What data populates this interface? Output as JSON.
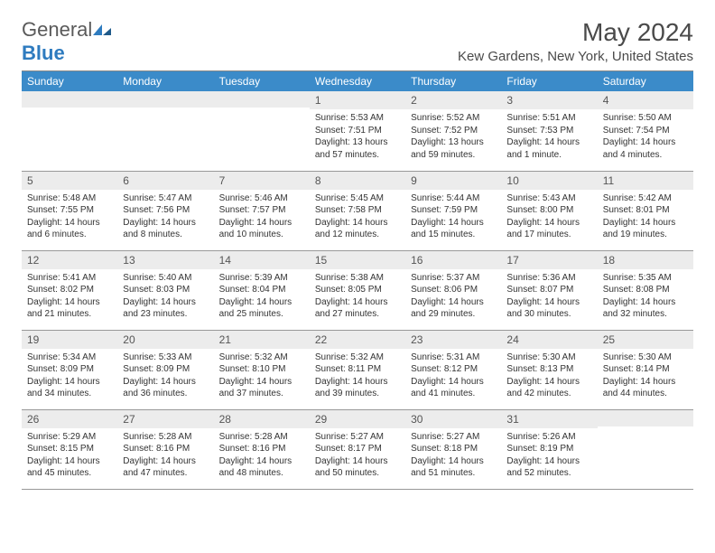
{
  "logo": {
    "word1": "General",
    "word2": "Blue"
  },
  "title": "May 2024",
  "location": "Kew Gardens, New York, United States",
  "colors": {
    "header_bg": "#3b8bc9",
    "header_text": "#ffffff",
    "daynum_bg": "#ececec",
    "border": "#999999",
    "text": "#333333",
    "logo_gray": "#5a5a5a",
    "logo_blue": "#2e7bbf"
  },
  "weekdays": [
    "Sunday",
    "Monday",
    "Tuesday",
    "Wednesday",
    "Thursday",
    "Friday",
    "Saturday"
  ],
  "weeks": [
    [
      {
        "n": "",
        "sr": "",
        "ss": "",
        "dl": ""
      },
      {
        "n": "",
        "sr": "",
        "ss": "",
        "dl": ""
      },
      {
        "n": "",
        "sr": "",
        "ss": "",
        "dl": ""
      },
      {
        "n": "1",
        "sr": "Sunrise: 5:53 AM",
        "ss": "Sunset: 7:51 PM",
        "dl": "Daylight: 13 hours and 57 minutes."
      },
      {
        "n": "2",
        "sr": "Sunrise: 5:52 AM",
        "ss": "Sunset: 7:52 PM",
        "dl": "Daylight: 13 hours and 59 minutes."
      },
      {
        "n": "3",
        "sr": "Sunrise: 5:51 AM",
        "ss": "Sunset: 7:53 PM",
        "dl": "Daylight: 14 hours and 1 minute."
      },
      {
        "n": "4",
        "sr": "Sunrise: 5:50 AM",
        "ss": "Sunset: 7:54 PM",
        "dl": "Daylight: 14 hours and 4 minutes."
      }
    ],
    [
      {
        "n": "5",
        "sr": "Sunrise: 5:48 AM",
        "ss": "Sunset: 7:55 PM",
        "dl": "Daylight: 14 hours and 6 minutes."
      },
      {
        "n": "6",
        "sr": "Sunrise: 5:47 AM",
        "ss": "Sunset: 7:56 PM",
        "dl": "Daylight: 14 hours and 8 minutes."
      },
      {
        "n": "7",
        "sr": "Sunrise: 5:46 AM",
        "ss": "Sunset: 7:57 PM",
        "dl": "Daylight: 14 hours and 10 minutes."
      },
      {
        "n": "8",
        "sr": "Sunrise: 5:45 AM",
        "ss": "Sunset: 7:58 PM",
        "dl": "Daylight: 14 hours and 12 minutes."
      },
      {
        "n": "9",
        "sr": "Sunrise: 5:44 AM",
        "ss": "Sunset: 7:59 PM",
        "dl": "Daylight: 14 hours and 15 minutes."
      },
      {
        "n": "10",
        "sr": "Sunrise: 5:43 AM",
        "ss": "Sunset: 8:00 PM",
        "dl": "Daylight: 14 hours and 17 minutes."
      },
      {
        "n": "11",
        "sr": "Sunrise: 5:42 AM",
        "ss": "Sunset: 8:01 PM",
        "dl": "Daylight: 14 hours and 19 minutes."
      }
    ],
    [
      {
        "n": "12",
        "sr": "Sunrise: 5:41 AM",
        "ss": "Sunset: 8:02 PM",
        "dl": "Daylight: 14 hours and 21 minutes."
      },
      {
        "n": "13",
        "sr": "Sunrise: 5:40 AM",
        "ss": "Sunset: 8:03 PM",
        "dl": "Daylight: 14 hours and 23 minutes."
      },
      {
        "n": "14",
        "sr": "Sunrise: 5:39 AM",
        "ss": "Sunset: 8:04 PM",
        "dl": "Daylight: 14 hours and 25 minutes."
      },
      {
        "n": "15",
        "sr": "Sunrise: 5:38 AM",
        "ss": "Sunset: 8:05 PM",
        "dl": "Daylight: 14 hours and 27 minutes."
      },
      {
        "n": "16",
        "sr": "Sunrise: 5:37 AM",
        "ss": "Sunset: 8:06 PM",
        "dl": "Daylight: 14 hours and 29 minutes."
      },
      {
        "n": "17",
        "sr": "Sunrise: 5:36 AM",
        "ss": "Sunset: 8:07 PM",
        "dl": "Daylight: 14 hours and 30 minutes."
      },
      {
        "n": "18",
        "sr": "Sunrise: 5:35 AM",
        "ss": "Sunset: 8:08 PM",
        "dl": "Daylight: 14 hours and 32 minutes."
      }
    ],
    [
      {
        "n": "19",
        "sr": "Sunrise: 5:34 AM",
        "ss": "Sunset: 8:09 PM",
        "dl": "Daylight: 14 hours and 34 minutes."
      },
      {
        "n": "20",
        "sr": "Sunrise: 5:33 AM",
        "ss": "Sunset: 8:09 PM",
        "dl": "Daylight: 14 hours and 36 minutes."
      },
      {
        "n": "21",
        "sr": "Sunrise: 5:32 AM",
        "ss": "Sunset: 8:10 PM",
        "dl": "Daylight: 14 hours and 37 minutes."
      },
      {
        "n": "22",
        "sr": "Sunrise: 5:32 AM",
        "ss": "Sunset: 8:11 PM",
        "dl": "Daylight: 14 hours and 39 minutes."
      },
      {
        "n": "23",
        "sr": "Sunrise: 5:31 AM",
        "ss": "Sunset: 8:12 PM",
        "dl": "Daylight: 14 hours and 41 minutes."
      },
      {
        "n": "24",
        "sr": "Sunrise: 5:30 AM",
        "ss": "Sunset: 8:13 PM",
        "dl": "Daylight: 14 hours and 42 minutes."
      },
      {
        "n": "25",
        "sr": "Sunrise: 5:30 AM",
        "ss": "Sunset: 8:14 PM",
        "dl": "Daylight: 14 hours and 44 minutes."
      }
    ],
    [
      {
        "n": "26",
        "sr": "Sunrise: 5:29 AM",
        "ss": "Sunset: 8:15 PM",
        "dl": "Daylight: 14 hours and 45 minutes."
      },
      {
        "n": "27",
        "sr": "Sunrise: 5:28 AM",
        "ss": "Sunset: 8:16 PM",
        "dl": "Daylight: 14 hours and 47 minutes."
      },
      {
        "n": "28",
        "sr": "Sunrise: 5:28 AM",
        "ss": "Sunset: 8:16 PM",
        "dl": "Daylight: 14 hours and 48 minutes."
      },
      {
        "n": "29",
        "sr": "Sunrise: 5:27 AM",
        "ss": "Sunset: 8:17 PM",
        "dl": "Daylight: 14 hours and 50 minutes."
      },
      {
        "n": "30",
        "sr": "Sunrise: 5:27 AM",
        "ss": "Sunset: 8:18 PM",
        "dl": "Daylight: 14 hours and 51 minutes."
      },
      {
        "n": "31",
        "sr": "Sunrise: 5:26 AM",
        "ss": "Sunset: 8:19 PM",
        "dl": "Daylight: 14 hours and 52 minutes."
      },
      {
        "n": "",
        "sr": "",
        "ss": "",
        "dl": ""
      }
    ]
  ]
}
